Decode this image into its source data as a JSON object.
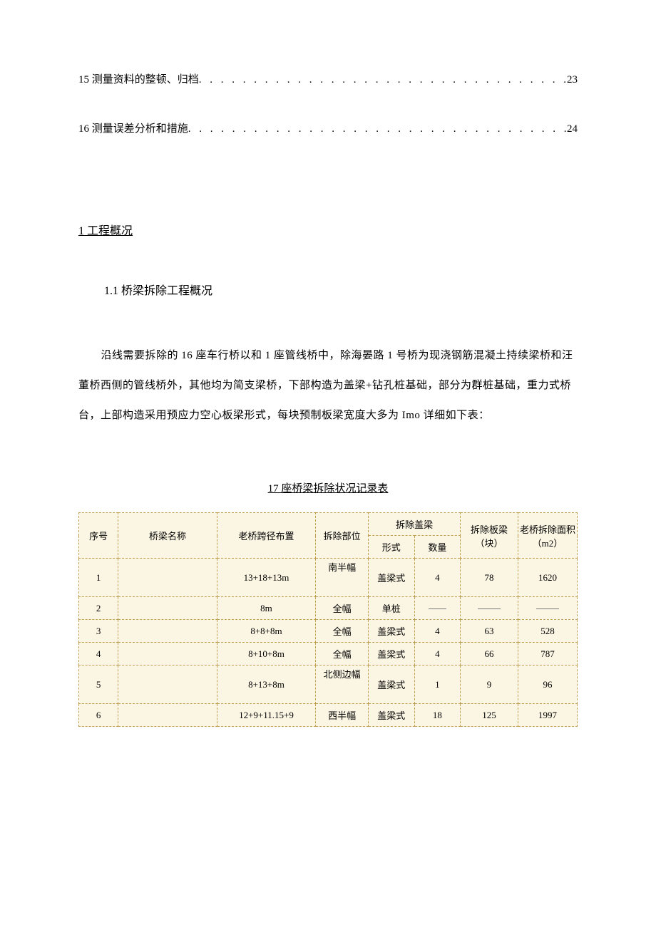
{
  "toc": [
    {
      "label": "15 测量资料的整顿、归档",
      "page": "23"
    },
    {
      "label": "16 测量误差分析和措施",
      "page": "24"
    }
  ],
  "section_heading": "1 工程概况",
  "subsection_heading": "1.1 桥梁拆除工程概况",
  "paragraph": "沿线需要拆除的 16 座车行桥以和 1 座管线桥中，除海晏路 1 号桥为现浇钢筋混凝土持续梁桥和汪董桥西侧的管线桥外，其他均为简支梁桥，下部构造为盖梁+钻孔桩基础，部分为群桩基础，重力式桥台，上部构造采用预应力空心板梁形式，每块预制板梁宽度大多为 Imo 详细如下表：",
  "table_title": "17 座桥梁拆除状况记录表",
  "table": {
    "background_color": "#fbf5e3",
    "border_color": "#c0a050",
    "headers": {
      "seq": "序号",
      "name": "桥梁名称",
      "span": "老桥跨径布置",
      "part": "拆除部位",
      "cap": "拆除盖梁",
      "form": "形式",
      "qty": "数量",
      "slab": "拆除板梁（块）",
      "area": "老桥拆除面积（m2）"
    },
    "rows": [
      {
        "seq": "1",
        "name": "",
        "span": "13+18+13m",
        "part": "南半幅",
        "form": "盖梁式",
        "qty": "4",
        "slab": "78",
        "area": "1620",
        "tall": true
      },
      {
        "seq": "2",
        "name": "",
        "span": "8m",
        "part": "全幅",
        "form": "单桩",
        "qty": "—",
        "slab": "—",
        "area": "—",
        "dash": true
      },
      {
        "seq": "3",
        "name": "",
        "span": "8+8+8m",
        "part": "全幅",
        "form": "盖梁式",
        "qty": "4",
        "slab": "63",
        "area": "528"
      },
      {
        "seq": "4",
        "name": "",
        "span": "8+10+8m",
        "part": "全幅",
        "form": "盖梁式",
        "qty": "4",
        "slab": "66",
        "area": "787"
      },
      {
        "seq": "5",
        "name": "",
        "span": "8+13+8m",
        "part": "北侧边幅",
        "form": "盖梁式",
        "qty": "1",
        "slab": "9",
        "area": "96",
        "tall": true
      },
      {
        "seq": "6",
        "name": "",
        "span": "12+9+11.15+9",
        "part": "西半幅",
        "form": "盖梁式",
        "qty": "18",
        "slab": "125",
        "area": "1997"
      }
    ]
  }
}
